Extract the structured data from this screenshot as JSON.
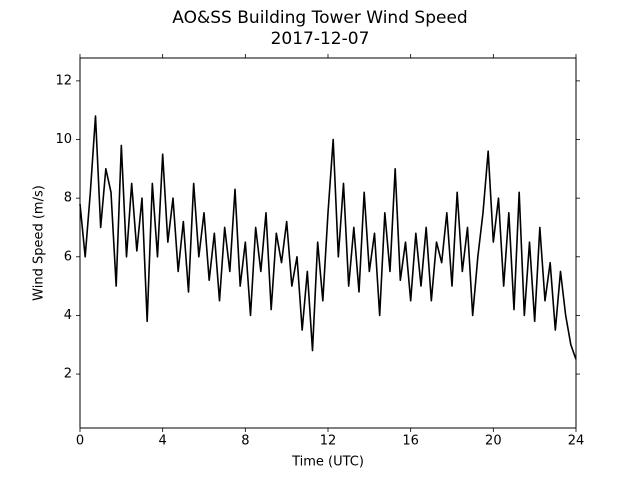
{
  "chart_data": {
    "type": "line",
    "title": "AO&SS Building Tower Wind Speed",
    "subtitle": "2017-12-07",
    "x_label": "Time (UTC)",
    "y_label": "Wind Speed (m/s)",
    "x": [
      0,
      0.25,
      0.5,
      0.75,
      1,
      1.25,
      1.5,
      1.75,
      2,
      2.25,
      2.5,
      2.75,
      3,
      3.25,
      3.5,
      3.75,
      4,
      4.25,
      4.5,
      4.75,
      5,
      5.25,
      5.5,
      5.75,
      6,
      6.25,
      6.5,
      6.75,
      7,
      7.25,
      7.5,
      7.75,
      8,
      8.25,
      8.5,
      8.75,
      9,
      9.25,
      9.5,
      9.75,
      10,
      10.25,
      10.5,
      10.75,
      11,
      11.25,
      11.5,
      11.75,
      12,
      12.25,
      12.5,
      12.75,
      13,
      13.25,
      13.5,
      13.75,
      14,
      14.25,
      14.5,
      14.75,
      15,
      15.25,
      15.5,
      15.75,
      16,
      16.25,
      16.5,
      16.75,
      17,
      17.25,
      17.5,
      17.75,
      18,
      18.25,
      18.5,
      18.75,
      19,
      19.25,
      19.5,
      19.75,
      20,
      20.25,
      20.5,
      20.75,
      21,
      21.25,
      21.5,
      21.75,
      22,
      22.25,
      22.5,
      22.75,
      23,
      23.25,
      23.5,
      23.75,
      24
    ],
    "series": [
      {
        "name": "Wind Speed",
        "color": "#000000",
        "values": [
          7.8,
          6.0,
          8.2,
          10.8,
          7.0,
          9.0,
          8.2,
          5.0,
          9.8,
          6.0,
          8.5,
          6.2,
          8.0,
          3.8,
          8.5,
          6.0,
          9.5,
          6.5,
          8.0,
          5.5,
          7.2,
          4.8,
          8.5,
          6.0,
          7.5,
          5.2,
          6.8,
          4.5,
          7.0,
          5.5,
          8.3,
          5.0,
          6.5,
          4.0,
          7.0,
          5.5,
          7.5,
          4.2,
          6.8,
          5.8,
          7.2,
          5.0,
          6.0,
          3.5,
          5.5,
          2.8,
          6.5,
          4.5,
          7.5,
          10.0,
          6.0,
          8.5,
          5.0,
          7.0,
          4.8,
          8.2,
          5.5,
          6.8,
          4.0,
          7.5,
          5.5,
          9.0,
          5.2,
          6.5,
          4.5,
          6.8,
          5.0,
          7.0,
          4.5,
          6.5,
          5.8,
          7.5,
          5.0,
          8.2,
          5.5,
          7.0,
          4.0,
          6.0,
          7.5,
          9.6,
          6.5,
          8.0,
          5.0,
          7.5,
          4.2,
          8.2,
          4.0,
          6.5,
          3.8,
          7.0,
          4.5,
          5.8,
          3.5,
          5.5,
          4.0,
          3.0,
          2.5
        ]
      }
    ],
    "xlim": [
      0,
      24
    ],
    "xticks": [
      0,
      4,
      8,
      12,
      16,
      20,
      24
    ],
    "ylim": [
      0.16,
      12.78
    ],
    "yticks": [
      2,
      4,
      6,
      8,
      10,
      12
    ]
  }
}
